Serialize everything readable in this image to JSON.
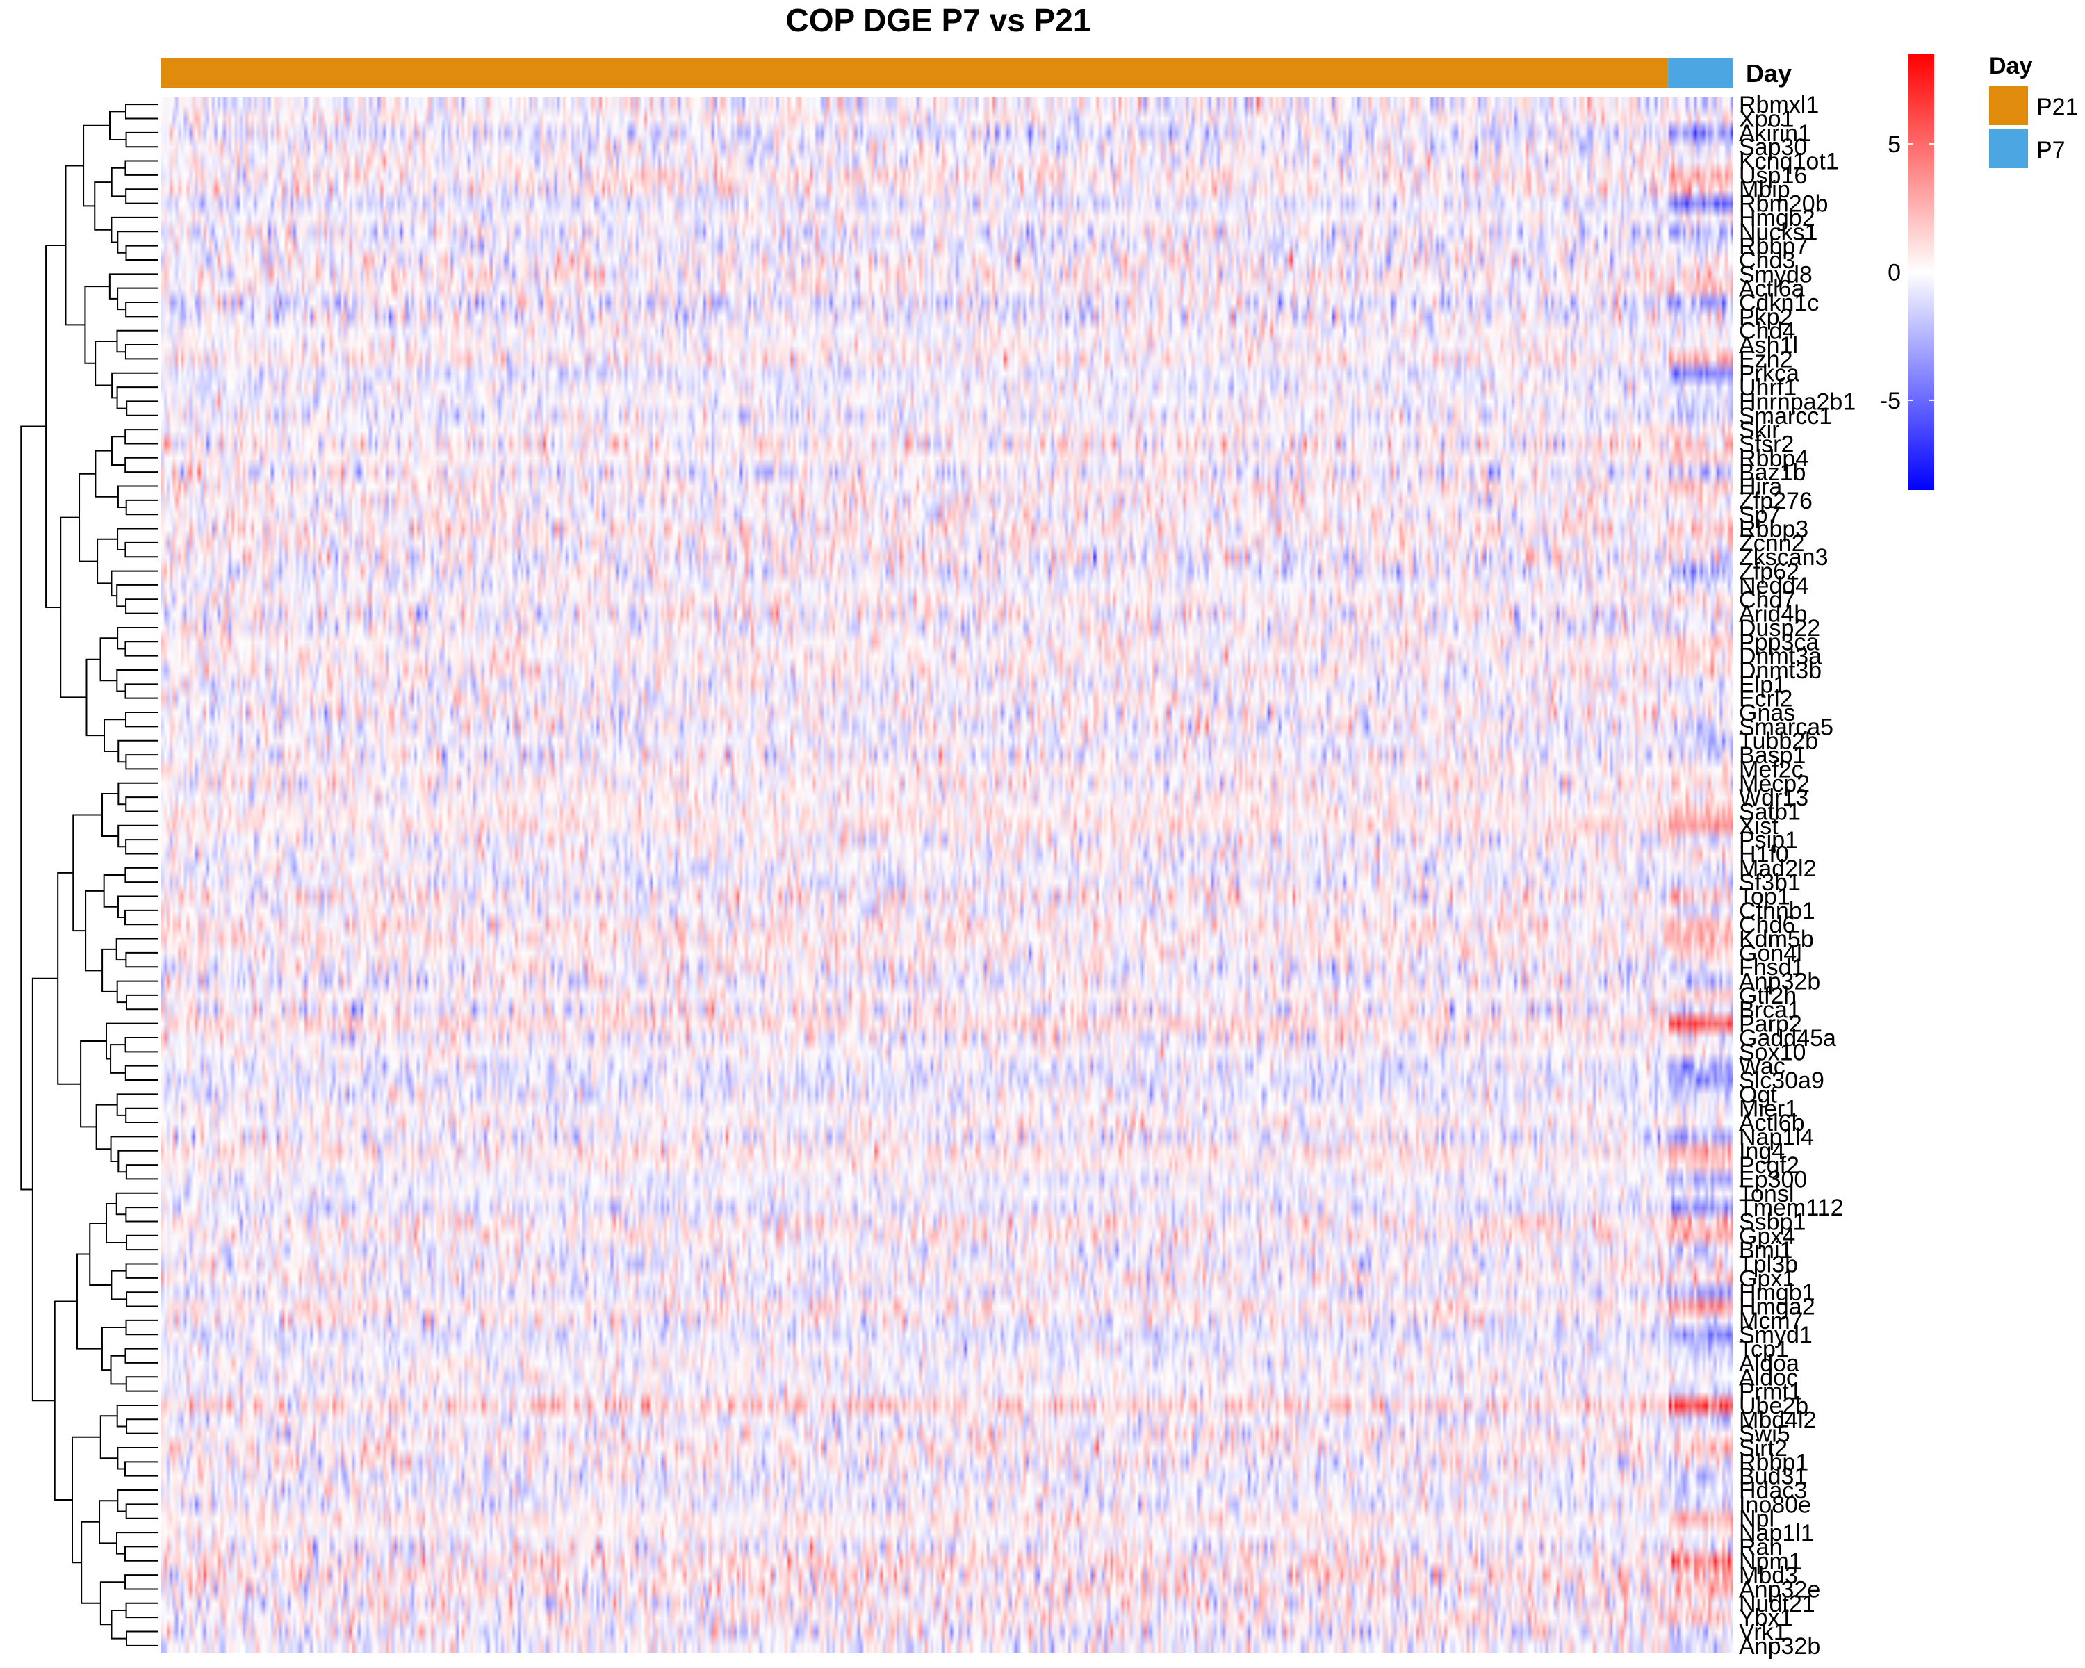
{
  "chart_data": {
    "type": "heatmap",
    "title": "COP DGE P7 vs P21",
    "column_annotation": {
      "name": "Day",
      "groups": [
        {
          "label": "P21",
          "color": "#E08B0B",
          "fraction": 0.9585
        },
        {
          "label": "P7",
          "color": "#4CA6E2",
          "fraction": 0.0415
        }
      ]
    },
    "color_scale": {
      "min": -8.5,
      "max": 8.5,
      "ticks": [
        5,
        0,
        -5
      ],
      "low_color": "#0000FF",
      "mid_color": "#FFFFFF",
      "high_color": "#FF0000"
    },
    "legend_day": {
      "title": "Day",
      "entries": [
        {
          "label": "P21",
          "color": "#E08B0B"
        },
        {
          "label": "P7",
          "color": "#4CA6E2"
        }
      ]
    },
    "row_labels": [
      "Rbmxl1",
      "Xpo1",
      "Akirin1",
      "Sap30",
      "Kcnq1ot1",
      "Usp16",
      "Mbip",
      "Rbm20b",
      "Hmgb2",
      "Nucks1",
      "Rbbp7",
      "Chd3",
      "Smyd8",
      "Actl6a",
      "Cdkn1c",
      "Pkp2",
      "Chd4",
      "Ash1l",
      "Ezh2",
      "Prkca",
      "Uhrf1",
      "Hnrnpa2b1",
      "Smarcc1",
      "Skir",
      "Sfsr2",
      "Rbbp4",
      "Baz1b",
      "Hira",
      "Zfp276",
      "Sp7",
      "Rbbp3",
      "Zcnn2",
      "Zkscan3",
      "Zfp62",
      "Nedd4",
      "Chd7",
      "Arid4b",
      "Dusp22",
      "Ppp3ca",
      "Dnmt3a",
      "Dnmt3b",
      "Elp1",
      "Ecrl2",
      "Gnas",
      "Smarca5",
      "Tubb2b",
      "Basp1",
      "Mef2c",
      "Mecp2",
      "Wdr13",
      "Satb1",
      "Xist",
      "Psip1",
      "H1f0",
      "Mad2l2",
      "Sf3b1",
      "Top1",
      "Ctnnb1",
      "Chd6",
      "Kdm5b",
      "Gon4l",
      "Fhsd1",
      "Anp32b",
      "Gtf2h",
      "Brca1",
      "Parp2",
      "Gadd45a",
      "Sox10",
      "Wac",
      "Slc30a9",
      "Ogt",
      "Mier1",
      "Actl6b",
      "Nap1l4",
      "Ing4",
      "Pcgf2",
      "Ep300",
      "Tonsl",
      "Tmem112",
      "Ssbp1",
      "Gpx4",
      "Bmi1",
      "Tpl3b",
      "Gpx1",
      "Hmgb1",
      "Hmga2",
      "Mcm7",
      "Smyd1",
      "Tcp1",
      "Aldoa",
      "Aldoc",
      "Prmt1",
      "Ube2b",
      "Mbd4l2",
      "Swi5",
      "Sirt2",
      "Rbbp1",
      "Bud31",
      "Hdac3",
      "Ino80e",
      "Npl",
      "Nap1l1",
      "Ran",
      "Npm1",
      "Mbd3",
      "Anp32e",
      "Nudt21",
      "Ybx1",
      "Vrk1",
      "Anp32b"
    ]
  }
}
